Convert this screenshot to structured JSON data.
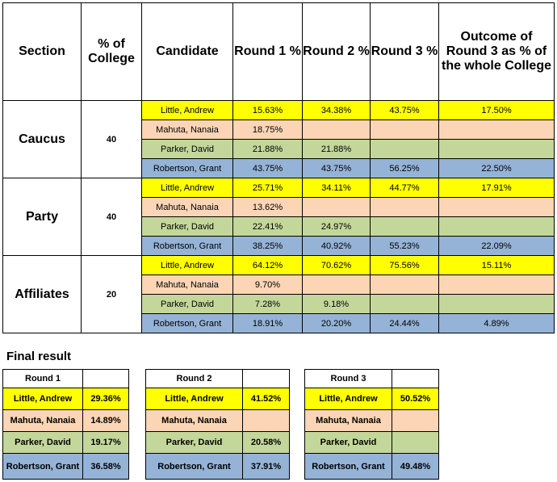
{
  "headers": {
    "section": "Section",
    "pct_college": "% of College",
    "candidate": "Candidate",
    "round1": "Round 1 %",
    "round2": "Round 2 %",
    "round3": "Round 3 %",
    "outcome": "Outcome of Round 3 as % of the whole College"
  },
  "sections": [
    {
      "name": "Caucus",
      "pct": "40",
      "rows": [
        {
          "candidate": "Little, Andrew",
          "r1": "15.63%",
          "r2": "34.38%",
          "r3": "43.75%",
          "outcome": "17.50%"
        },
        {
          "candidate": "Mahuta, Nanaia",
          "r1": "18.75%",
          "r2": "",
          "r3": "",
          "outcome": ""
        },
        {
          "candidate": "Parker, David",
          "r1": "21.88%",
          "r2": "21.88%",
          "r3": "",
          "outcome": ""
        },
        {
          "candidate": "Robertson, Grant",
          "r1": "43.75%",
          "r2": "43.75%",
          "r3": "56.25%",
          "outcome": "22.50%"
        }
      ]
    },
    {
      "name": "Party",
      "pct": "40",
      "rows": [
        {
          "candidate": "Little, Andrew",
          "r1": "25.71%",
          "r2": "34.11%",
          "r3": "44.77%",
          "outcome": "17.91%"
        },
        {
          "candidate": "Mahuta, Nanaia",
          "r1": "13.62%",
          "r2": "",
          "r3": "",
          "outcome": ""
        },
        {
          "candidate": "Parker, David",
          "r1": "22.41%",
          "r2": "24.97%",
          "r3": "",
          "outcome": ""
        },
        {
          "candidate": "Robertson, Grant",
          "r1": "38.25%",
          "r2": "40.92%",
          "r3": "55.23%",
          "outcome": "22.09%"
        }
      ]
    },
    {
      "name": "Affiliates",
      "pct": "20",
      "rows": [
        {
          "candidate": "Little, Andrew",
          "r1": "64.12%",
          "r2": "70.62%",
          "r3": "75.56%",
          "outcome": "15.11%"
        },
        {
          "candidate": "Mahuta, Nanaia",
          "r1": "9.70%",
          "r2": "",
          "r3": "",
          "outcome": ""
        },
        {
          "candidate": "Parker, David",
          "r1": "7.28%",
          "r2": "9.18%",
          "r3": "",
          "outcome": ""
        },
        {
          "candidate": "Robertson, Grant",
          "r1": "18.91%",
          "r2": "20.20%",
          "r3": "24.44%",
          "outcome": "4.89%"
        }
      ]
    }
  ],
  "final": {
    "title": "Final result",
    "round1": {
      "label": "Round 1",
      "rows": [
        {
          "candidate": "Little, Andrew",
          "value": "29.36%"
        },
        {
          "candidate": "Mahuta, Nanaia",
          "value": "14.89%"
        },
        {
          "candidate": "Parker, David",
          "value": "19.17%"
        },
        {
          "candidate": "Robertson, Grant",
          "value": "36.58%"
        }
      ]
    },
    "round2": {
      "label": "Round 2",
      "rows": [
        {
          "candidate": "Little, Andrew",
          "value": "41.52%"
        },
        {
          "candidate": "Mahuta, Nanaia",
          "value": ""
        },
        {
          "candidate": "Parker, David",
          "value": "20.58%"
        },
        {
          "candidate": "Robertson, Grant",
          "value": "37.91%"
        }
      ]
    },
    "round3": {
      "label": "Round 3",
      "rows": [
        {
          "candidate": "Little, Andrew",
          "value": "50.52%"
        },
        {
          "candidate": "Mahuta, Nanaia",
          "value": ""
        },
        {
          "candidate": "Parker, David",
          "value": ""
        },
        {
          "candidate": "Robertson, Grant",
          "value": "49.48%"
        }
      ]
    }
  },
  "colors": {
    "little": "#ffff00",
    "mahuta": "#fbd5b5",
    "parker": "#c4d79b",
    "robertson": "#95b3d7"
  }
}
